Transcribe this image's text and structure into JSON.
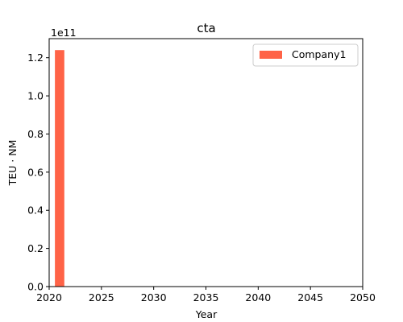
{
  "chart_data": {
    "type": "bar",
    "title": "cta",
    "xlabel": "Year",
    "ylabel": "TEU · NM",
    "y_offset_label": "1e11",
    "y_scale": 100000000000,
    "xlim": [
      2020,
      2050
    ],
    "ylim": [
      0,
      130000000000
    ],
    "x_ticks": [
      2020,
      2025,
      2030,
      2035,
      2040,
      2045,
      2050
    ],
    "y_ticks": [
      0,
      20000000000,
      40000000000,
      60000000000,
      80000000000,
      100000000000,
      120000000000
    ],
    "y_tick_labels": [
      "0.0",
      "0.2",
      "0.4",
      "0.6",
      "0.8",
      "1.0",
      "1.2"
    ],
    "grid": false,
    "legend_position": "top-right",
    "series": [
      {
        "name": "Company1",
        "color": "#ff6347",
        "bars": [
          {
            "x": 2021,
            "value": 124000000000
          }
        ]
      }
    ]
  }
}
